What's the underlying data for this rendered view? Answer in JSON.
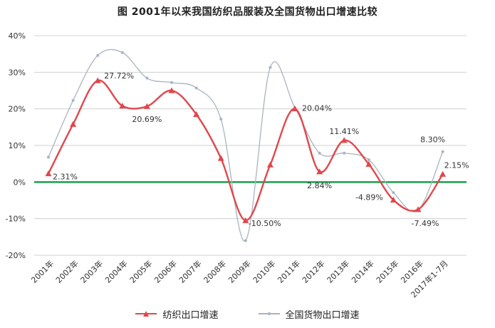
{
  "chart_data": {
    "type": "line",
    "title": "图    2001年以来我国纺织品服装及全国货物出口增速比较",
    "categories": [
      "2001年",
      "2002年",
      "2003年",
      "2004年",
      "2005年",
      "2006年",
      "2007年",
      "2008年",
      "2009年",
      "2010年",
      "2011年",
      "2012年",
      "2013年",
      "2014年",
      "2015年",
      "2016年",
      "2017年1-7月"
    ],
    "yticks": [
      "-20%",
      "-10%",
      "0%",
      "10%",
      "20%",
      "30%",
      "40%"
    ],
    "ylim": [
      -20,
      40
    ],
    "grid": true,
    "legend_position": "bottom",
    "series": [
      {
        "name": "纺织出口增速",
        "color": "#e0474c",
        "marker": "triangle",
        "values": [
          2.31,
          15.8,
          27.72,
          20.8,
          20.69,
          25.0,
          18.5,
          6.5,
          -10.5,
          4.7,
          20.04,
          2.84,
          11.41,
          4.89,
          -4.89,
          -7.49,
          2.15
        ]
      },
      {
        "name": "全国货物出口增速",
        "color": "#a9b3c2",
        "marker": "dot",
        "values": [
          6.8,
          22.3,
          34.6,
          35.4,
          28.4,
          27.2,
          25.7,
          17.2,
          -16.0,
          31.3,
          20.3,
          7.9,
          7.9,
          6.1,
          -2.9,
          -7.7,
          8.3
        ]
      }
    ],
    "zero_line_color": "#1a9e50",
    "annotations": [
      {
        "series": 0,
        "index": 0,
        "text": "2.31%"
      },
      {
        "series": 0,
        "index": 2,
        "text": "27.72%"
      },
      {
        "series": 0,
        "index": 4,
        "text": "20.69%"
      },
      {
        "series": 0,
        "index": 8,
        "text": "-10.50%"
      },
      {
        "series": 0,
        "index": 10,
        "text": "20.04%"
      },
      {
        "series": 0,
        "index": 11,
        "text": "2.84%"
      },
      {
        "series": 0,
        "index": 12,
        "text": "11.41%"
      },
      {
        "series": 0,
        "index": 14,
        "text": "-4.89%"
      },
      {
        "series": 0,
        "index": 15,
        "text": "-7.49%"
      },
      {
        "series": 1,
        "index": 16,
        "text": "8.30%"
      },
      {
        "series": 0,
        "index": 16,
        "text": "2.15%"
      }
    ]
  }
}
